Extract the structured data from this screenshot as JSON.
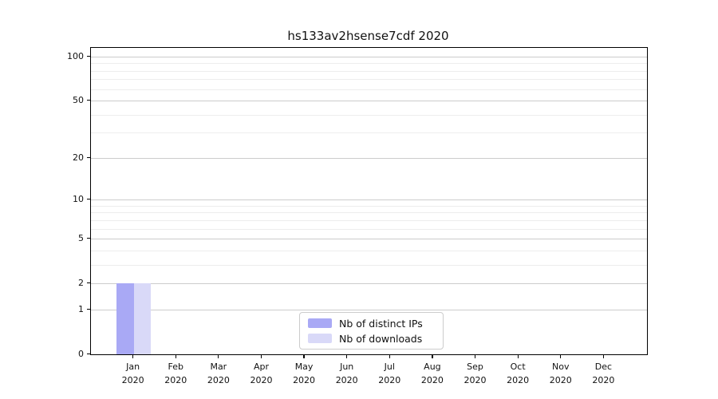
{
  "chart_data": {
    "type": "bar",
    "title": "hs133av2hsense7cdf 2020",
    "x": {
      "months": [
        "Jan",
        "Feb",
        "Mar",
        "Apr",
        "May",
        "Jun",
        "Jul",
        "Aug",
        "Sep",
        "Oct",
        "Nov",
        "Dec"
      ],
      "year": "2020"
    },
    "series": [
      {
        "name": "Nb of distinct IPs",
        "color": "#a9a9f5",
        "values": [
          2,
          0,
          0,
          0,
          0,
          0,
          0,
          0,
          0,
          0,
          0,
          0
        ]
      },
      {
        "name": "Nb of downloads",
        "color": "#d9d9f8",
        "values": [
          2,
          0,
          0,
          0,
          0,
          0,
          0,
          0,
          0,
          0,
          0,
          0
        ]
      }
    ],
    "y_axis": {
      "scale": "log1p",
      "major_ticks": [
        0,
        1,
        2,
        5,
        10,
        20,
        50,
        100
      ],
      "minor_gridlines": [
        3,
        4,
        6,
        7,
        8,
        9,
        30,
        40,
        60,
        70,
        80,
        90
      ],
      "ylim": [
        0,
        114.5
      ]
    },
    "legend": {
      "position": "lower center"
    },
    "colors": {
      "grid_major": "#cccccc",
      "grid_minor": "#ededed",
      "spine": "#000000",
      "text": "#111111",
      "background": "#ffffff"
    }
  }
}
